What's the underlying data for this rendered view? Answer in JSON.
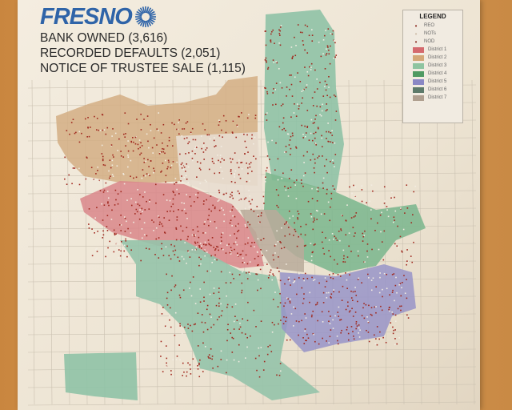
{
  "logo": {
    "text": "FRESNO",
    "color": "#2f64a8"
  },
  "stats": [
    {
      "label": "BANK OWNED  (3,616)"
    },
    {
      "label": "RECORDED DEFAULTS (2,051)"
    },
    {
      "label": "NOTICE OF TRUSTEE SALE (1,115)"
    }
  ],
  "legend": {
    "title": "LEGEND",
    "points": [
      {
        "label": "REO",
        "color": "#a0281e"
      },
      {
        "label": "NOTs",
        "color": "#d9c9b6"
      },
      {
        "label": "NOD",
        "color": "#7a2018"
      }
    ],
    "districts": [
      {
        "label": "District 1",
        "color": "#d46a6e"
      },
      {
        "label": "District 2",
        "color": "#d4a878"
      },
      {
        "label": "District 3",
        "color": "#8ec4a0"
      },
      {
        "label": "District 4",
        "color": "#4f9a62"
      },
      {
        "label": "District 5",
        "color": "#8a88c4"
      },
      {
        "label": "District 6",
        "color": "#5d7a6a"
      },
      {
        "label": "District 7",
        "color": "#b0a090"
      }
    ]
  }
}
